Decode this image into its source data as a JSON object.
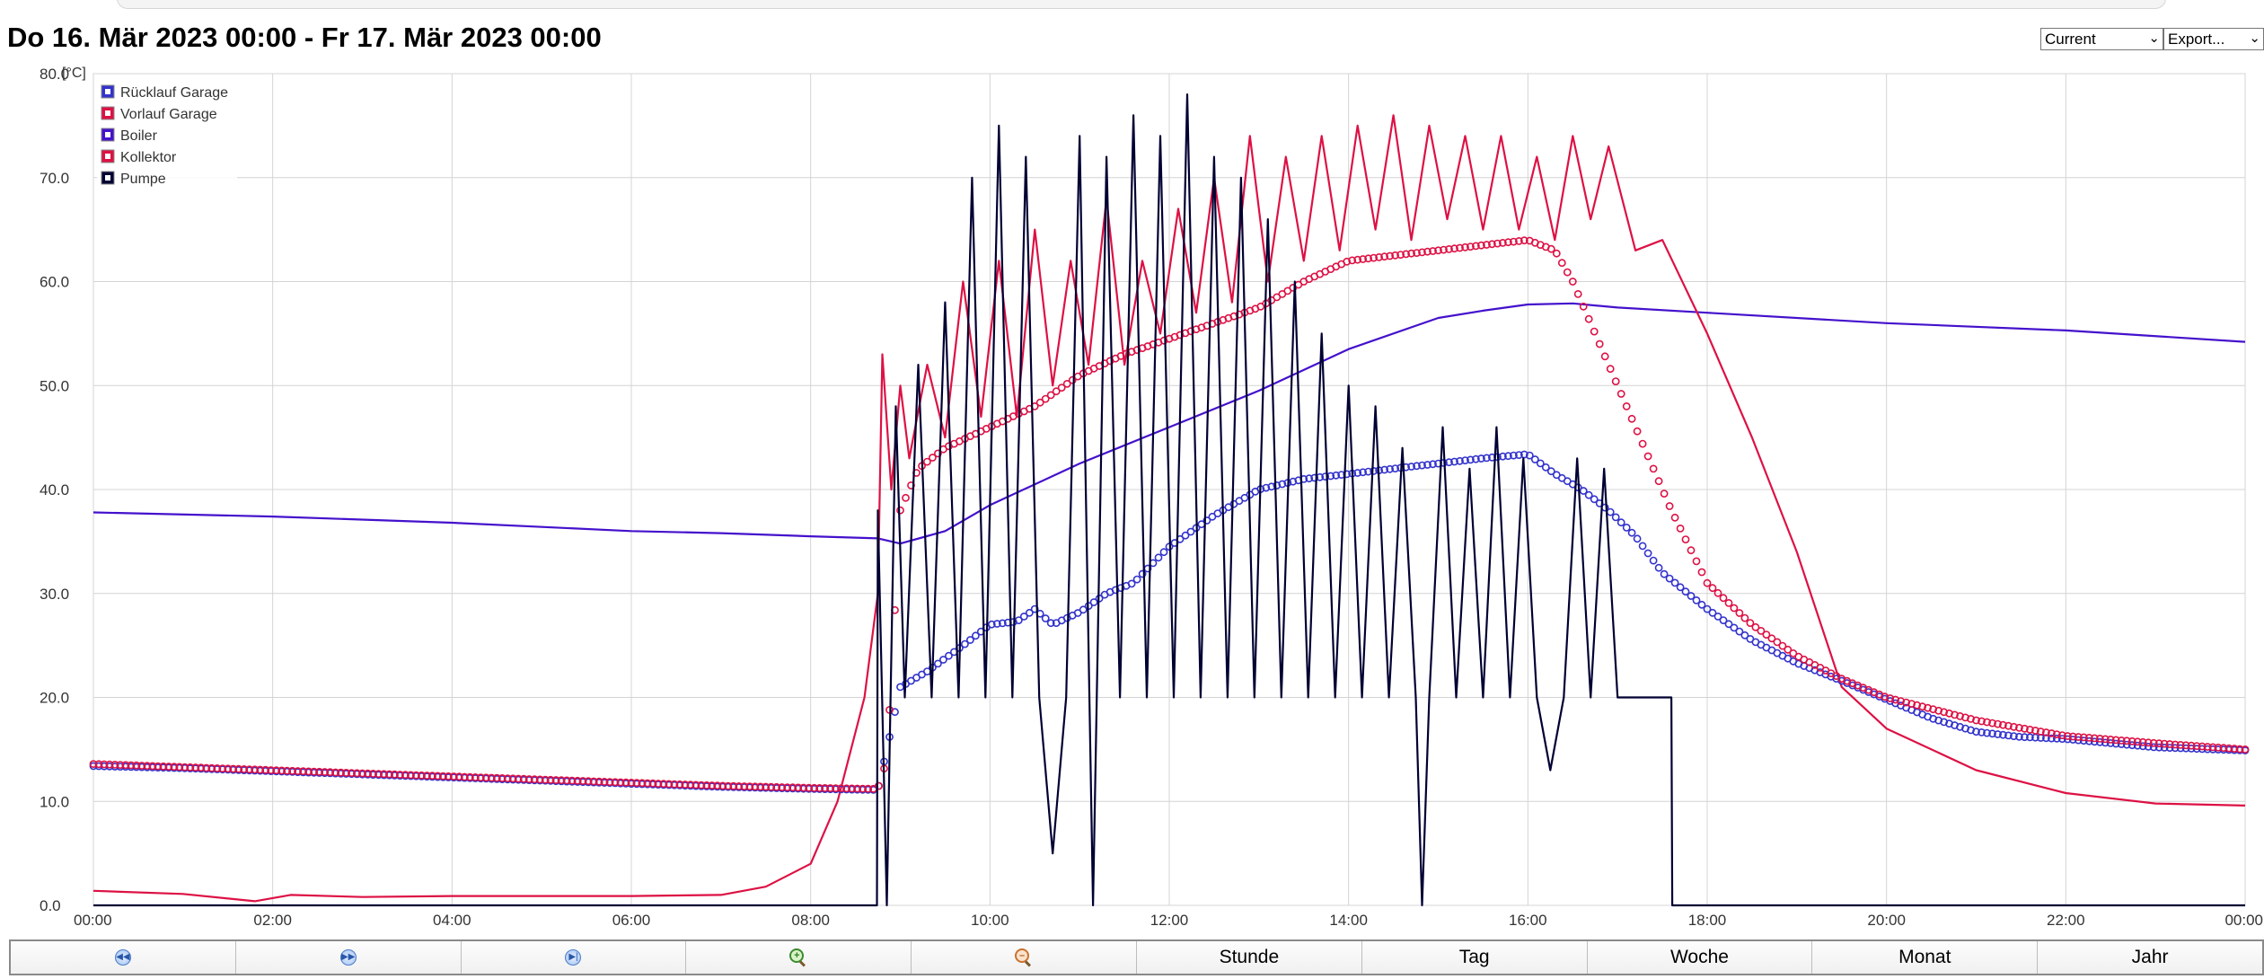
{
  "header": {
    "title": "Do 16. Mär 2023 00:00 - Fr 17. Mär 2023 00:00",
    "period_select": "Current",
    "export_select": "Export..."
  },
  "navbar": {
    "buttons": [
      {
        "icon": "rewind-icon",
        "label": ""
      },
      {
        "icon": "fast-forward-icon",
        "label": ""
      },
      {
        "icon": "skip-end-icon",
        "label": ""
      },
      {
        "icon": "zoom-in-icon",
        "label": ""
      },
      {
        "icon": "zoom-out-icon",
        "label": ""
      },
      {
        "icon": "",
        "label": "Stunde"
      },
      {
        "icon": "",
        "label": "Tag"
      },
      {
        "icon": "",
        "label": "Woche"
      },
      {
        "icon": "",
        "label": "Monat"
      },
      {
        "icon": "",
        "label": "Jahr"
      }
    ]
  },
  "chart_data": {
    "type": "line",
    "ylabel": "[°C]",
    "ylim": [
      0,
      80
    ],
    "yticks": [
      "0.0",
      "10.0",
      "20.0",
      "30.0",
      "40.0",
      "50.0",
      "60.0",
      "70.0",
      "80.0"
    ],
    "xlim": [
      0,
      24
    ],
    "xticks": [
      "00:00",
      "02:00",
      "04:00",
      "06:00",
      "08:00",
      "10:00",
      "12:00",
      "14:00",
      "16:00",
      "18:00",
      "20:00",
      "22:00",
      "00:00"
    ],
    "grid": true,
    "legend_position": "top-left",
    "series": [
      {
        "name": "Rücklauf Garage",
        "color": "#3333cc",
        "style": "markers",
        "x": [
          0,
          1,
          2,
          3,
          4,
          5,
          6,
          7,
          8,
          8.75,
          8.85,
          9,
          9.3,
          9.7,
          10,
          10.3,
          10.5,
          10.7,
          11,
          11.3,
          11.6,
          12,
          12.5,
          13,
          13.5,
          14,
          14.5,
          15,
          15.5,
          16,
          16.3,
          16.6,
          16.9,
          17.2,
          17.5,
          18,
          18.5,
          19,
          19.5,
          20,
          20.5,
          21,
          21.5,
          22,
          22.5,
          23,
          24
        ],
        "y": [
          13.4,
          13.2,
          12.9,
          12.6,
          12.3,
          12,
          11.7,
          11.4,
          11.2,
          11.1,
          15,
          21,
          22.5,
          25,
          27,
          27.3,
          28.5,
          27,
          28.2,
          30,
          31,
          34.5,
          37.5,
          40,
          41,
          41.5,
          42,
          42.5,
          43,
          43.4,
          41.5,
          40,
          38,
          35.5,
          32,
          28.5,
          25.5,
          23.3,
          21.6,
          19.8,
          18,
          16.7,
          16.2,
          16,
          15.6,
          15.2,
          14.9
        ]
      },
      {
        "name": "Vorlauf Garage",
        "color": "#dd1144",
        "style": "markers",
        "x": [
          0,
          1,
          2,
          3,
          4,
          5,
          6,
          7,
          8,
          8.75,
          8.85,
          9,
          9.2,
          9.5,
          10,
          10.5,
          11,
          11.5,
          12,
          12.5,
          13,
          13.5,
          14,
          14.5,
          15,
          15.5,
          16,
          16.3,
          16.5,
          16.7,
          17,
          17.3,
          17.6,
          18,
          18.5,
          19,
          19.5,
          20,
          21,
          22,
          23,
          24
        ],
        "y": [
          13.6,
          13.3,
          13,
          12.7,
          12.4,
          12.1,
          11.8,
          11.5,
          11.3,
          11.2,
          14,
          38,
          42,
          44,
          46,
          48,
          51,
          53,
          54.5,
          56,
          57.5,
          60,
          62,
          62.5,
          63,
          63.5,
          64,
          63,
          60,
          56,
          50,
          44,
          38,
          31,
          27,
          24,
          21.8,
          20,
          17.8,
          16.3,
          15.6,
          15
        ]
      },
      {
        "name": "Boiler",
        "color": "#4411cc",
        "style": "line",
        "x": [
          0,
          2,
          4,
          6,
          7,
          8,
          8.75,
          9,
          9.5,
          10,
          11,
          12,
          13,
          14,
          15,
          15.5,
          16,
          16.5,
          17,
          18,
          20,
          22,
          24
        ],
        "y": [
          37.8,
          37.4,
          36.8,
          36,
          35.8,
          35.5,
          35.3,
          34.8,
          36,
          38.5,
          42.5,
          46,
          49.5,
          53.5,
          56.5,
          57.2,
          57.8,
          57.9,
          57.5,
          57,
          56,
          55.3,
          54.2
        ]
      },
      {
        "name": "Kollektor",
        "color": "#dd1144",
        "style": "line",
        "x": [
          0,
          1,
          1.8,
          2.2,
          3,
          4,
          5,
          6,
          7,
          7.5,
          8,
          8.3,
          8.6,
          8.75,
          8.8,
          8.9,
          9,
          9.1,
          9.3,
          9.5,
          9.7,
          9.9,
          10.1,
          10.3,
          10.5,
          10.7,
          10.9,
          11.1,
          11.3,
          11.5,
          11.7,
          11.9,
          12.1,
          12.3,
          12.5,
          12.7,
          12.9,
          13.1,
          13.3,
          13.5,
          13.7,
          13.9,
          14.1,
          14.3,
          14.5,
          14.7,
          14.9,
          15.1,
          15.3,
          15.5,
          15.7,
          15.9,
          16.1,
          16.3,
          16.5,
          16.7,
          16.9,
          17.2,
          17.5,
          18,
          18.5,
          19,
          19.5,
          20,
          21,
          22,
          23,
          24
        ],
        "y": [
          1.4,
          1.1,
          0.4,
          1,
          0.8,
          0.9,
          0.9,
          0.9,
          1,
          1.8,
          4,
          10,
          20,
          30,
          53,
          40,
          50,
          43,
          52,
          45,
          60,
          47,
          62,
          47,
          65,
          50,
          62,
          52,
          68,
          52,
          62,
          55,
          67,
          57,
          70,
          58,
          74,
          60,
          72,
          62,
          74,
          63,
          75,
          65,
          76,
          64,
          75,
          66,
          74,
          65,
          74,
          65,
          72,
          64,
          74,
          66,
          73,
          63,
          64,
          55,
          45,
          34,
          21,
          17,
          13,
          10.8,
          9.8,
          9.6
        ]
      },
      {
        "name": "Pumpe",
        "color": "#000033",
        "style": "line",
        "x": [
          0,
          8.74,
          8.75,
          8.85,
          8.95,
          9.05,
          9.2,
          9.35,
          9.5,
          9.65,
          9.8,
          9.95,
          10.1,
          10.25,
          10.4,
          10.55,
          10.7,
          10.85,
          11,
          11.15,
          11.3,
          11.45,
          11.6,
          11.75,
          11.9,
          12.05,
          12.2,
          12.35,
          12.5,
          12.65,
          12.8,
          12.95,
          13.1,
          13.25,
          13.4,
          13.55,
          13.7,
          13.85,
          14,
          14.15,
          14.3,
          14.45,
          14.6,
          14.75,
          14.82,
          14.9,
          15.05,
          15.2,
          15.35,
          15.5,
          15.65,
          15.8,
          15.95,
          16.1,
          16.25,
          16.4,
          16.55,
          16.7,
          16.85,
          17,
          17.2,
          17.5,
          17.6,
          17.61,
          24
        ],
        "y": [
          0,
          0,
          38,
          0,
          48,
          20,
          52,
          20,
          58,
          20,
          70,
          20,
          75,
          20,
          72,
          20,
          5,
          20,
          74,
          0,
          72,
          20,
          76,
          20,
          74,
          20,
          78,
          20,
          72,
          20,
          70,
          20,
          66,
          20,
          60,
          20,
          55,
          20,
          50,
          20,
          48,
          20,
          44,
          20,
          0,
          20,
          46,
          20,
          42,
          20,
          46,
          20,
          43,
          20,
          13,
          20,
          43,
          20,
          42,
          20,
          20,
          20,
          20,
          0,
          0
        ]
      }
    ]
  }
}
